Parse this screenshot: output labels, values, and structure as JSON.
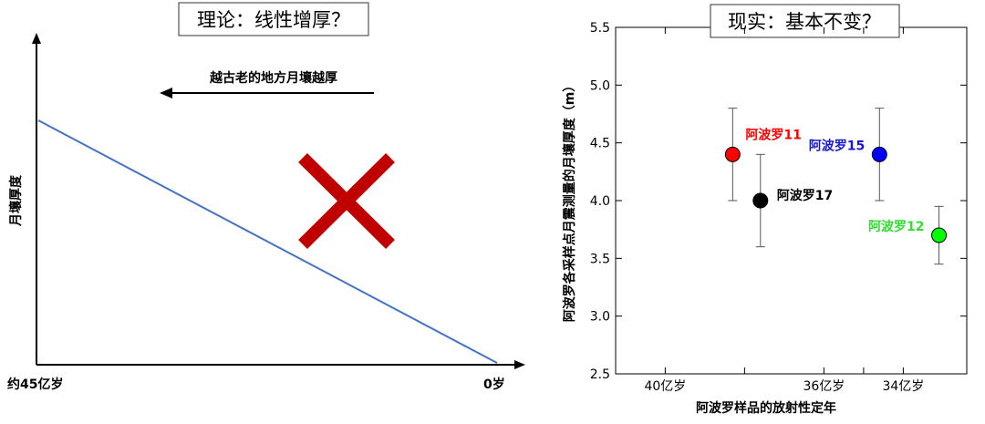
{
  "chart_data": [
    {
      "type": "line",
      "title": "理论：线性增厚？",
      "ylabel": "月壤厚度",
      "x_tick_labels": [
        "约45亿岁",
        "0岁"
      ],
      "arrow_annotation": "越古老的地方月壤越厚",
      "series": [
        {
          "color": "#4472c4",
          "trend": "decreasing from old (left) to young (right)"
        }
      ],
      "cross_mark": {
        "icon": "red-x-cross-icon",
        "color": "#c00000"
      }
    },
    {
      "type": "scatter",
      "title": "现实：基本不变？",
      "xlabel": "阿波罗样品的放射性定年",
      "ylabel": "阿波罗各采样点月震测量的月壤厚度（m）",
      "ylim": [
        2.5,
        5.5
      ],
      "yticks": [
        2.5,
        3.0,
        3.5,
        4.0,
        4.5,
        5.0,
        5.5
      ],
      "y_tick_labels": [
        "2.5",
        "3.0",
        "3.5",
        "4.0",
        "4.5",
        "5.0",
        "5.5"
      ],
      "xlim": [
        41.25,
        32.4
      ],
      "x_ticks": [
        {
          "value": 40,
          "label": "40亿岁"
        },
        {
          "value": 36,
          "label": "36亿岁"
        },
        {
          "value": 34,
          "label": "34亿岁"
        }
      ],
      "x_minor_ticks": [
        38,
        35
      ],
      "points": [
        {
          "name": "阿波罗11",
          "x": 38.3,
          "y": 4.4,
          "err_low": 4.0,
          "err_high": 4.8,
          "color": "#ff0000",
          "label_color": "#ff0000",
          "label_position": "upper-right"
        },
        {
          "name": "阿波罗17",
          "x": 37.6,
          "y": 4.0,
          "err_low": 3.6,
          "err_high": 4.4,
          "color": "#000000",
          "label_color": "#000000",
          "label_position": "right"
        },
        {
          "name": "阿波罗15",
          "x": 34.6,
          "y": 4.4,
          "err_low": 4.0,
          "err_high": 4.8,
          "color": "#0000ff",
          "label_color": "#1a1acc",
          "label_position": "left"
        },
        {
          "name": "阿波罗12",
          "x": 33.1,
          "y": 3.7,
          "err_low": 3.45,
          "err_high": 3.95,
          "color": "#00ff00",
          "label_color": "#33dd33",
          "label_position": "left"
        }
      ]
    }
  ]
}
